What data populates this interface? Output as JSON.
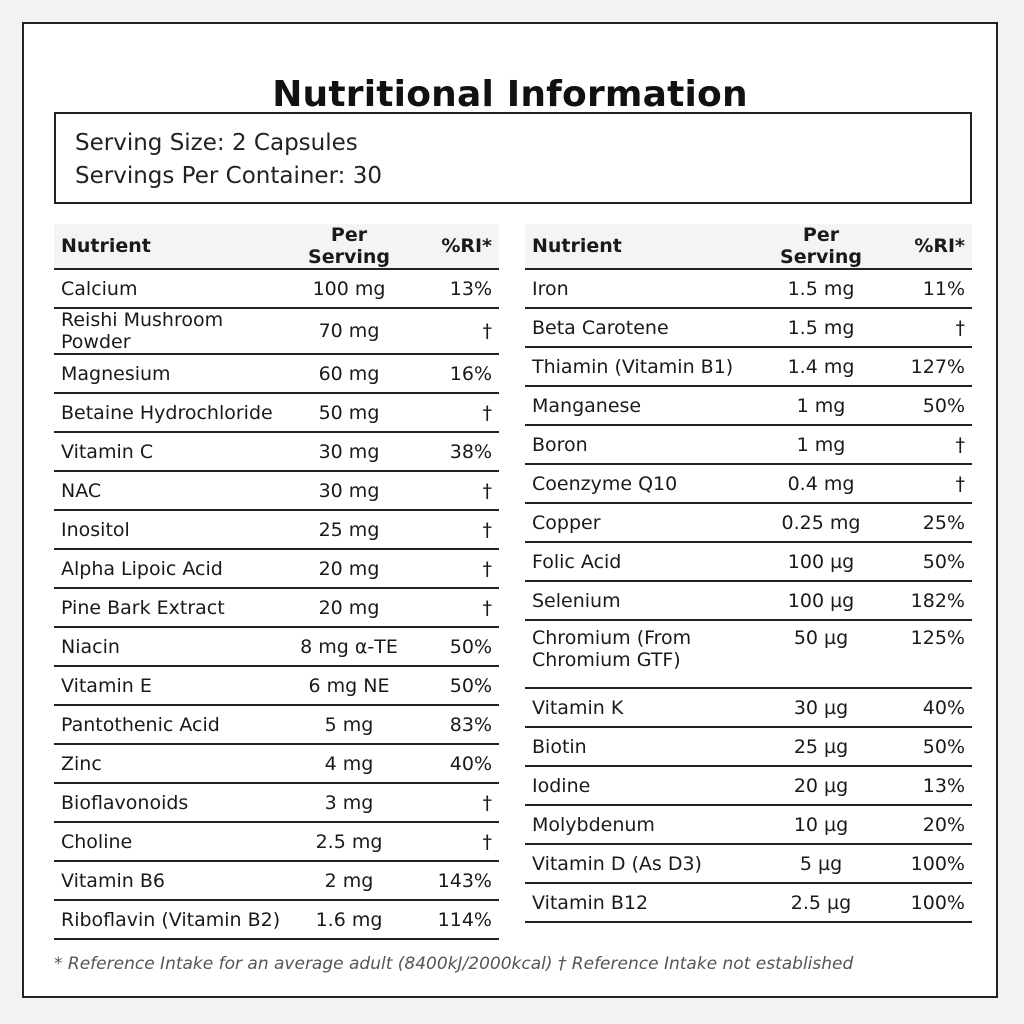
{
  "title": "Nutritional Information",
  "serving": {
    "size": "Serving Size: 2 Capsules",
    "per_container": "Servings Per Container: 30"
  },
  "headers": {
    "nutrient": "Nutrient",
    "per_serving": "Per Serving",
    "ri": "%RI*"
  },
  "left_rows": [
    {
      "nutrient": "Calcium",
      "amount": "100 mg",
      "ri": "13%"
    },
    {
      "nutrient": "Reishi Mushroom Powder",
      "amount": "70 mg",
      "ri": "†"
    },
    {
      "nutrient": "Magnesium",
      "amount": "60 mg",
      "ri": "16%"
    },
    {
      "nutrient": "Betaine Hydrochloride",
      "amount": "50 mg",
      "ri": "†"
    },
    {
      "nutrient": "Vitamin C",
      "amount": "30 mg",
      "ri": "38%"
    },
    {
      "nutrient": "NAC",
      "amount": "30 mg",
      "ri": "†"
    },
    {
      "nutrient": "Inositol",
      "amount": "25 mg",
      "ri": "†"
    },
    {
      "nutrient": "Alpha Lipoic Acid",
      "amount": "20 mg",
      "ri": "†"
    },
    {
      "nutrient": "Pine Bark Extract",
      "amount": "20 mg",
      "ri": "†"
    },
    {
      "nutrient": "Niacin",
      "amount": "8 mg α-TE",
      "ri": "50%"
    },
    {
      "nutrient": "Vitamin E",
      "amount": "6 mg NE",
      "ri": "50%"
    },
    {
      "nutrient": "Pantothenic Acid",
      "amount": "5 mg",
      "ri": "83%"
    },
    {
      "nutrient": "Zinc",
      "amount": "4 mg",
      "ri": "40%"
    },
    {
      "nutrient": "Bioflavonoids",
      "amount": "3 mg",
      "ri": "†"
    },
    {
      "nutrient": "Choline",
      "amount": "2.5 mg",
      "ri": "†"
    },
    {
      "nutrient": "Vitamin B6",
      "amount": "2 mg",
      "ri": "143%"
    },
    {
      "nutrient": "Riboflavin (Vitamin B2)",
      "amount": "1.6 mg",
      "ri": "114%"
    }
  ],
  "right_rows": [
    {
      "nutrient": "Iron",
      "amount": "1.5 mg",
      "ri": "11%"
    },
    {
      "nutrient": "Beta Carotene",
      "amount": "1.5 mg",
      "ri": "†"
    },
    {
      "nutrient": "Thiamin (Vitamin B1)",
      "amount": "1.4 mg",
      "ri": "127%"
    },
    {
      "nutrient": "Manganese",
      "amount": "1 mg",
      "ri": "50%"
    },
    {
      "nutrient": "Boron",
      "amount": "1 mg",
      "ri": "†"
    },
    {
      "nutrient": "Coenzyme Q10",
      "amount": "0.4 mg",
      "ri": "†"
    },
    {
      "nutrient": "Copper",
      "amount": "0.25 mg",
      "ri": "25%"
    },
    {
      "nutrient": "Folic Acid",
      "amount": "100 µg",
      "ri": "50%"
    },
    {
      "nutrient": "Selenium",
      "amount": "100 µg",
      "ri": "182%"
    },
    {
      "nutrient": "Chromium (From Chromium GTF)",
      "amount": "50 µg",
      "ri": "125%"
    },
    {
      "nutrient": "Vitamin K",
      "amount": "30 µg",
      "ri": "40%"
    },
    {
      "nutrient": "Biotin",
      "amount": "25 µg",
      "ri": "50%"
    },
    {
      "nutrient": "Iodine",
      "amount": "20 µg",
      "ri": "13%"
    },
    {
      "nutrient": "Molybdenum",
      "amount": "10 µg",
      "ri": "20%"
    },
    {
      "nutrient": "Vitamin D (As D3)",
      "amount": "5 µg",
      "ri": "100%"
    },
    {
      "nutrient": "Vitamin B12",
      "amount": "2.5 µg",
      "ri": "100%"
    }
  ],
  "footnote": "* Reference Intake for an average adult (8400kJ/2000kcal) † Reference Intake not established"
}
